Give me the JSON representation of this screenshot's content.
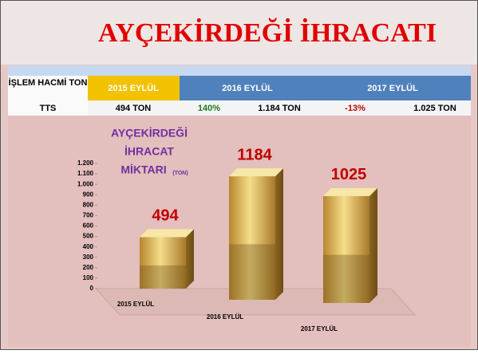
{
  "title": "AYÇEKİRDEĞİ İHRACATI",
  "table": {
    "header": [
      "İŞLEM HACMİ TON",
      "2015 EYLÜL",
      "2016 EYLÜL",
      "2017 EYLÜL"
    ],
    "rows": [
      [
        "TTS",
        "494 TON",
        "140%",
        "1.184 TON",
        "-13%",
        "1.025 TON"
      ]
    ]
  },
  "chart_data": {
    "type": "bar",
    "title_lines": [
      "AYÇEKİRDEĞİ",
      "İHRACAT",
      "MİKTARI"
    ],
    "title_unit": "(TON)",
    "categories": [
      "2015 EYLÜL",
      "2016 EYLÜL",
      "2017 EYLÜL"
    ],
    "values": [
      494,
      1184,
      1025
    ],
    "color": "#d9b44a",
    "label_color": "#c00000",
    "ylim": [
      0,
      1200
    ],
    "yticks": [
      0,
      100,
      200,
      300,
      400,
      500,
      600,
      700,
      800,
      900,
      {
        "value": 1000,
        "label": "1.000"
      },
      {
        "value": 1100,
        "label": "1.100"
      },
      {
        "value": 1200,
        "label": "1.200"
      }
    ]
  }
}
